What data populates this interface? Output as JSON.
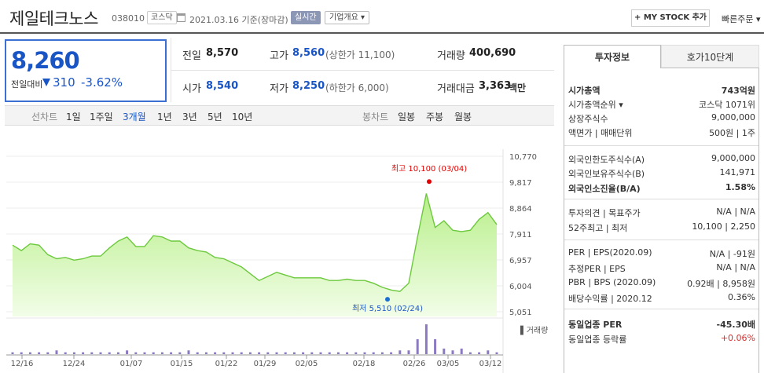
{
  "header": {
    "company_name": "제일테크노스",
    "stock_code": "038010",
    "market_tag": "코스닥",
    "date_text": "2021.03.16  기준(장마감)",
    "realtime_label": "실시간",
    "company_info_label": "기업개요 ▾",
    "mystock_label": "+ MY STOCK 추가",
    "quick_order_label": "빠른주문 ▾"
  },
  "price": {
    "current": "8,260",
    "diff_label": "전일대비",
    "diff_value": "310",
    "diff_pct": "-3.62%"
  },
  "quote": {
    "prev_label": "전일",
    "prev_value": "8,570",
    "high_label": "고가",
    "high_value": "8,560",
    "upper_limit": "(상한가 11,100)",
    "volume_label": "거래량",
    "volume_value": "400,690",
    "open_label": "시가",
    "open_value": "8,540",
    "low_label": "저가",
    "low_value": "8,250",
    "lower_limit": "(하한가 6,000)",
    "amount_label": "거래대금",
    "amount_value": "3,363",
    "amount_unit": "백만"
  },
  "period_bar": {
    "line_label": "선차트",
    "line_items": [
      "1일",
      "1주일",
      "3개월",
      "1년",
      "3년",
      "5년",
      "10년"
    ],
    "selected": "3개월",
    "candle_label": "봉차트",
    "candle_items": [
      "일봉",
      "주봉",
      "월봉"
    ]
  },
  "right_panel": {
    "tabs": [
      "투자정보",
      "호가10단계"
    ],
    "rows": [
      {
        "k": "시가총액",
        "v": "743억원",
        "bold": true
      },
      {
        "k": "시가총액순위 ▾",
        "v": "코스닥 1071위"
      },
      {
        "k": "상장주식수",
        "v": "9,000,000"
      },
      {
        "k": "액면가 | 매매단위",
        "v": "500원 | 1주"
      },
      {
        "k": "외국인한도주식수(A)",
        "v": "9,000,000"
      },
      {
        "k": "외국인보유주식수(B)",
        "v": "141,971"
      },
      {
        "k": "외국인소진율(B/A)",
        "v": "1.58%",
        "bold": true
      },
      {
        "k": "투자의견 | 목표주가",
        "v": "N/A | N/A"
      },
      {
        "k": "52주최고 | 최저",
        "v": "10,100 | 2,250"
      },
      {
        "k": "PER | EPS(2020.09)",
        "v": "N/A | -91원"
      },
      {
        "k": "추정PER | EPS",
        "v": "N/A | N/A"
      },
      {
        "k": "PBR | BPS (2020.09)",
        "v": "0.92배 | 8,958원"
      },
      {
        "k": "배당수익률 | 2020.12",
        "v": "0.36%"
      },
      {
        "k": "동일업종 PER",
        "v": "-45.30배",
        "bold": true
      },
      {
        "k": "동일업종 등락률",
        "v": "+0.06%",
        "red": true
      }
    ]
  },
  "chart_data": {
    "type": "area",
    "y_ticks": [
      "10,770",
      "9,817",
      "8,864",
      "7,911",
      "6,957",
      "6,004",
      "5,051"
    ],
    "ylim": [
      5051,
      10770
    ],
    "x_ticks": [
      "12/16",
      "12/24",
      "01/07",
      "01/15",
      "01/22",
      "01/29",
      "02/05",
      "02/18",
      "02/26",
      "03/05",
      "03/12"
    ],
    "values": [
      7500,
      7300,
      7550,
      7500,
      7150,
      7000,
      7050,
      6950,
      7000,
      7100,
      7100,
      7400,
      7650,
      7800,
      7450,
      7450,
      7850,
      7800,
      7650,
      7650,
      7400,
      7300,
      7250,
      7050,
      7000,
      6850,
      6700,
      6450,
      6200,
      6350,
      6500,
      6400,
      6300,
      6300,
      6300,
      6300,
      6200,
      6200,
      6250,
      6200,
      6200,
      6100,
      5950,
      5850,
      5800,
      6100,
      7800,
      9400,
      8150,
      8400,
      8050,
      8000,
      8050,
      8450,
      8700,
      8260
    ],
    "max_label": "최고 10,100 (03/04)",
    "min_label": "최저 5,510 (02/24)",
    "volume_label": "거래량",
    "volumes": [
      1,
      1,
      1,
      1,
      1,
      2,
      1,
      1,
      1,
      1,
      1,
      1,
      1,
      2,
      1,
      1,
      1,
      1,
      1,
      1,
      2,
      1,
      1,
      1,
      1,
      1,
      1,
      1,
      1,
      1,
      1,
      1,
      1,
      1,
      1,
      1,
      1,
      1,
      1,
      1,
      1,
      1,
      1,
      1,
      2,
      2,
      8,
      16,
      8,
      3,
      2,
      3,
      1,
      1,
      2,
      1
    ]
  }
}
